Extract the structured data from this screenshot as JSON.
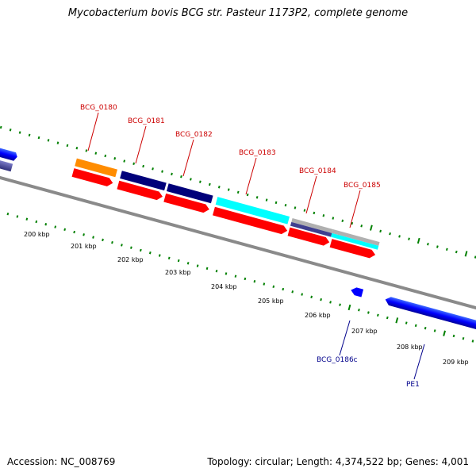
{
  "title": "Mycobacterium bovis BCG str. Pasteur 1173P2, complete genome",
  "footer": {
    "accession": "Accession: NC_008769",
    "stats": "Topology: circular; Length: 4,374,522 bp; Genes: 4,001"
  },
  "colors": {
    "backbone": "#8a8a8a",
    "tick": "#008000",
    "cds": "#ff0000",
    "forward_gene": "#0000ff",
    "label_forward": "#cc0000",
    "label_reverse": "#00008b",
    "cog_orange": "#ff8c00",
    "cog_navy": "#00007a",
    "cog_cyan": "#00ffff",
    "cog_gray": "#b0b0b0",
    "cog_slate": "#3f3f8f"
  },
  "scale": {
    "unit": "kbp",
    "labels": [
      "200 kbp",
      "201 kbp",
      "202 kbp",
      "203 kbp",
      "204 kbp",
      "205 kbp",
      "206 kbp",
      "207 kbp",
      "208 kbp",
      "209 kbp"
    ]
  },
  "genes": [
    {
      "label": "BCG_0180",
      "strand": "forward",
      "cog_color": "#ff8c00"
    },
    {
      "label": "BCG_0181",
      "strand": "forward",
      "cog_color": "#00007a"
    },
    {
      "label": "BCG_0182",
      "strand": "forward",
      "cog_color": "#00007a"
    },
    {
      "label": "BCG_0183",
      "strand": "forward",
      "cog_color": "#00ffff"
    },
    {
      "label": "BCG_0184",
      "strand": "forward",
      "cog_color": "#3f3f8f"
    },
    {
      "label": "BCG_0185",
      "strand": "forward",
      "cog_color": "#b0b0b0"
    },
    {
      "label": "BCG_0186c",
      "strand": "reverse",
      "cog_color": "#0000ff"
    },
    {
      "label": "PE1",
      "strand": "reverse",
      "cog_color": "#0000ff"
    }
  ]
}
